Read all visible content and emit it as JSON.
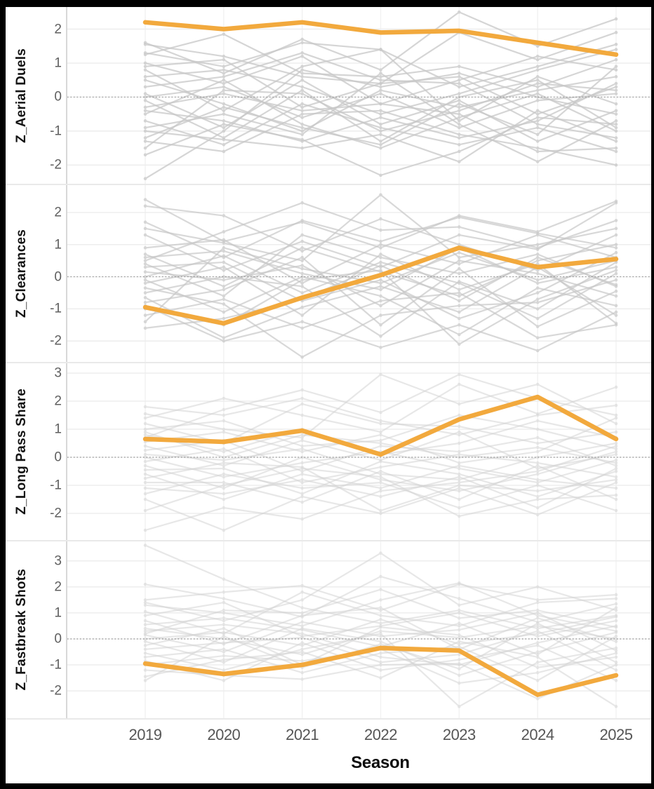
{
  "chart_data": {
    "type": "line",
    "xlabel": "Season",
    "x": [
      2019,
      2020,
      2021,
      2022,
      2023,
      2024,
      2025
    ],
    "highlight_color": "#F2A93D",
    "grid_color": "#ededed",
    "grid_color_v": "#f2f2f2",
    "zero_line_color": "#8f8f8f",
    "panel_divider_color": "#e9e9e9",
    "frame_color": "#000000",
    "legend": "none",
    "grid": "on",
    "panels": [
      {
        "ylabel": "Z_Aerial Duels",
        "yticks": [
          2,
          1,
          0,
          -1,
          -2
        ],
        "ylim": [
          -2.55,
          2.65
        ],
        "series_color": "#c8c8c8",
        "series_opacity": 0.75,
        "highlight": [
          2.2,
          2.0,
          2.2,
          1.9,
          1.95,
          1.6,
          1.25
        ],
        "background_series": [
          [
            1.6,
            0.7,
            1.7,
            0.8,
            2.5,
            1.5,
            2.3
          ],
          [
            1.55,
            1.2,
            0.6,
            0.4,
            1.9,
            1.1,
            1.9
          ],
          [
            1.3,
            0.9,
            1.6,
            1.4,
            0.3,
            0.9,
            1.55
          ],
          [
            1.25,
            1.85,
            0.7,
            0.6,
            0.9,
            0.3,
            1.1
          ],
          [
            1.0,
            0.4,
            1.2,
            -0.2,
            0.5,
            1.2,
            0.8
          ],
          [
            0.9,
            1.1,
            -0.3,
            0.4,
            0.6,
            -0.5,
            0.3
          ],
          [
            0.8,
            -0.4,
            0.9,
            1.4,
            -0.7,
            0.6,
            -0.2
          ],
          [
            0.6,
            0.8,
            0.3,
            -0.5,
            0.1,
            0.8,
            1.4
          ],
          [
            0.5,
            -0.2,
            -1.0,
            0.2,
            -0.3,
            0.2,
            0.6
          ],
          [
            0.3,
            0.6,
            1.3,
            0.5,
            0.4,
            -0.8,
            -1.2
          ],
          [
            0.1,
            -0.9,
            0.5,
            -0.8,
            -0.1,
            -1.3,
            -0.4
          ],
          [
            0.0,
            0.3,
            -0.6,
            0.1,
            -0.9,
            -0.1,
            0.1
          ],
          [
            -0.1,
            -1.2,
            0.2,
            -1.3,
            0.0,
            0.5,
            -0.9
          ],
          [
            -0.3,
            0.1,
            -0.4,
            -0.2,
            -0.5,
            -1.6,
            -1.5
          ],
          [
            -0.4,
            -0.7,
            -1.3,
            -0.6,
            -1.2,
            -0.7,
            0.4
          ],
          [
            -0.5,
            0.5,
            -0.8,
            -1.5,
            -0.6,
            0.1,
            -1.0
          ],
          [
            -0.7,
            -1.4,
            -0.2,
            -0.9,
            -1.4,
            -0.9,
            -1.6
          ],
          [
            -0.9,
            -0.5,
            -1.1,
            0.7,
            -0.8,
            -1.9,
            -0.7
          ],
          [
            -1.0,
            -1.25,
            -1.5,
            -1.1,
            -1.9,
            -0.4,
            -1.3
          ],
          [
            -1.2,
            -0.3,
            -0.9,
            -1.4,
            -0.2,
            -1.1,
            0.9
          ],
          [
            -1.3,
            -1.6,
            -0.5,
            -0.4,
            -1.1,
            -1.5,
            -2.0
          ],
          [
            -1.5,
            0.2,
            0.1,
            -1.0,
            -0.4,
            0.4,
            0.2
          ],
          [
            -1.7,
            -0.8,
            -1.25,
            -2.3,
            -1.6,
            -0.6,
            -0.8
          ],
          [
            -2.4,
            -1.0,
            0.8,
            0.3,
            0.7,
            0.0,
            -0.5
          ]
        ]
      },
      {
        "ylabel": "Z_Clearances",
        "yticks": [
          2,
          1,
          0,
          -1,
          -2
        ],
        "ylim": [
          -2.65,
          2.85
        ],
        "series_color": "#c8c8c8",
        "series_opacity": 0.7,
        "highlight": [
          -0.95,
          -1.45,
          -0.65,
          0.05,
          0.9,
          0.3,
          0.55
        ],
        "background_series": [
          [
            2.4,
            1.1,
            1.7,
            0.9,
            1.9,
            1.4,
            2.35
          ],
          [
            2.2,
            1.9,
            0.8,
            1.8,
            1.0,
            0.2,
            1.3
          ],
          [
            1.7,
            0.6,
            1.75,
            1.1,
            1.85,
            1.35,
            0.9
          ],
          [
            1.5,
            1.05,
            0.5,
            2.55,
            0.6,
            1.0,
            1.5
          ],
          [
            1.3,
            0.2,
            1.1,
            0.3,
            1.3,
            0.85,
            2.3
          ],
          [
            0.9,
            1.15,
            -0.2,
            1.0,
            0.4,
            1.3,
            0.6
          ],
          [
            0.7,
            -0.3,
            0.9,
            0.15,
            -0.6,
            0.5,
            1.0
          ],
          [
            0.6,
            0.8,
            0.1,
            -0.4,
            0.9,
            -0.2,
            0.3
          ],
          [
            0.4,
            -0.6,
            1.3,
            0.6,
            0.1,
            0.7,
            -0.3
          ],
          [
            0.3,
            0.45,
            -0.75,
            -0.1,
            -1.3,
            -0.5,
            0.75
          ],
          [
            0.15,
            -0.1,
            0.35,
            -0.9,
            0.5,
            0.1,
            -0.6
          ],
          [
            0.0,
            0.65,
            -0.5,
            0.45,
            -0.2,
            -1.3,
            0.1
          ],
          [
            -0.1,
            -1.1,
            0.0,
            -0.6,
            -1.8,
            -0.35,
            -0.9
          ],
          [
            -0.2,
            0.3,
            -1.2,
            0.7,
            -0.4,
            0.4,
            -1.45
          ],
          [
            -0.35,
            -0.85,
            -2.5,
            -1.2,
            -0.9,
            -0.8,
            -0.1
          ],
          [
            -0.5,
            0.0,
            -0.3,
            -1.85,
            -0.15,
            -1.0,
            0.45
          ],
          [
            -0.65,
            -1.9,
            -0.95,
            -0.3,
            -1.1,
            0.3,
            -1.2
          ],
          [
            -0.8,
            -0.4,
            0.6,
            -1.5,
            0.25,
            -1.55,
            -0.45
          ],
          [
            -1.0,
            -1.5,
            -0.1,
            0.2,
            -2.1,
            -0.7,
            0.2
          ],
          [
            -1.2,
            -0.7,
            -1.6,
            -0.75,
            -0.5,
            -1.9,
            -1.5
          ],
          [
            -1.4,
            0.9,
            0.25,
            -0.2,
            0.75,
            -0.1,
            0.5
          ],
          [
            -1.6,
            -1.3,
            -0.7,
            0.35,
            -0.75,
            0.6,
            -0.25
          ],
          [
            0.5,
            1.4,
            2.3,
            1.45,
            1.55,
            0.9,
            1.75
          ],
          [
            -0.9,
            -2.0,
            -1.4,
            -2.2,
            -1.5,
            -2.3,
            -1.1
          ]
        ]
      },
      {
        "ylabel": "Z_Long Pass Share",
        "yticks": [
          3,
          2,
          1,
          0,
          -1,
          -2
        ],
        "ylim": [
          -2.95,
          3.35
        ],
        "series_color": "#d4d4d4",
        "series_opacity": 0.55,
        "highlight": [
          0.65,
          0.55,
          0.95,
          0.1,
          1.35,
          2.15,
          0.65
        ],
        "background_series": [
          [
            1.8,
            1.5,
            2.1,
            1.3,
            0.8,
            1.5,
            1.85
          ],
          [
            1.55,
            1.0,
            0.7,
            2.95,
            1.9,
            2.6,
            1.2
          ],
          [
            1.4,
            2.1,
            1.5,
            0.9,
            2.6,
            1.55,
            2.5
          ],
          [
            1.2,
            0.5,
            1.9,
            1.2,
            1.1,
            0.5,
            0.9
          ],
          [
            1.0,
            1.3,
            0.4,
            0.6,
            1.5,
            1.0,
            0.3
          ],
          [
            0.8,
            0.2,
            1.0,
            0.1,
            0.5,
            1.3,
            0.7
          ],
          [
            0.55,
            0.9,
            0.2,
            0.8,
            -0.2,
            0.2,
            1.4
          ],
          [
            0.4,
            -0.3,
            0.6,
            -0.1,
            0.9,
            -0.4,
            0.1
          ],
          [
            0.25,
            0.6,
            -0.5,
            0.4,
            0.2,
            0.7,
            -0.3
          ],
          [
            0.1,
            -0.1,
            0.3,
            -0.6,
            -0.8,
            0.0,
            0.5
          ],
          [
            0.0,
            -0.7,
            -0.2,
            0.2,
            -0.4,
            -0.9,
            -0.1
          ],
          [
            -0.15,
            0.3,
            -0.9,
            -0.35,
            0.1,
            -0.2,
            -0.7
          ],
          [
            -0.3,
            -1.1,
            0.0,
            -0.8,
            -1.2,
            -0.6,
            0.2
          ],
          [
            -0.45,
            -0.4,
            -1.3,
            -0.15,
            -0.6,
            -1.4,
            -0.5
          ],
          [
            -0.6,
            -1.5,
            -0.6,
            -1.1,
            -0.3,
            -0.8,
            -1.1
          ],
          [
            -0.75,
            -0.2,
            -0.35,
            -1.9,
            -1.0,
            -1.2,
            -0.8
          ],
          [
            -0.9,
            -0.9,
            -1.6,
            -0.5,
            -1.5,
            -0.3,
            -1.5
          ],
          [
            -1.1,
            -1.3,
            -0.8,
            -1.4,
            -0.7,
            -1.8,
            -0.4
          ],
          [
            -1.3,
            -0.6,
            -1.1,
            -0.9,
            -1.8,
            -1.0,
            -1.9
          ],
          [
            -1.5,
            -2.6,
            -1.4,
            -2.0,
            -1.1,
            -2.05,
            -0.9
          ],
          [
            -1.9,
            -1.0,
            -0.4,
            -0.7,
            -2.1,
            -1.5,
            -1.35
          ],
          [
            -2.6,
            -1.8,
            -2.2,
            -1.2,
            -0.9,
            -0.5,
            0.4
          ],
          [
            0.7,
            1.7,
            2.4,
            1.6,
            2.95,
            2.1,
            1.5
          ],
          [
            0.9,
            0.0,
            0.8,
            0.5,
            0.0,
            0.35,
            -0.2
          ]
        ]
      },
      {
        "ylabel": "Z_Fastbreak Shots",
        "yticks": [
          3,
          2,
          1,
          0,
          -1,
          -2
        ],
        "ylim": [
          -3.05,
          3.75
        ],
        "series_color": "#d4d4d4",
        "series_opacity": 0.55,
        "highlight": [
          -0.95,
          -1.35,
          -1.0,
          -0.35,
          -0.45,
          -2.15,
          -1.4
        ],
        "background_series": [
          [
            3.6,
            2.3,
            1.2,
            0.6,
            1.1,
            0.4,
            0.9
          ],
          [
            1.5,
            1.8,
            2.05,
            1.1,
            2.1,
            1.5,
            1.7
          ],
          [
            1.4,
            0.7,
            1.5,
            3.3,
            1.3,
            2.0,
            1.1
          ],
          [
            1.3,
            1.0,
            0.5,
            1.5,
            2.15,
            0.9,
            0.3
          ],
          [
            1.05,
            0.2,
            1.8,
            0.9,
            0.5,
            1.4,
            1.55
          ],
          [
            0.9,
            1.4,
            0.1,
            0.5,
            1.0,
            0.1,
            0.7
          ],
          [
            0.7,
            -0.2,
            0.9,
            1.2,
            -0.4,
            0.8,
            -0.1
          ],
          [
            0.55,
            0.8,
            0.35,
            -0.3,
            0.6,
            -0.6,
            1.2
          ],
          [
            0.4,
            0.0,
            -0.6,
            0.3,
            0.05,
            0.5,
            0.0
          ],
          [
            0.3,
            0.55,
            0.2,
            -0.7,
            -1.0,
            -0.15,
            0.5
          ],
          [
            0.15,
            -0.5,
            0.65,
            0.1,
            0.35,
            1.0,
            -0.45
          ],
          [
            0.0,
            0.25,
            -0.25,
            0.75,
            -0.2,
            0.2,
            0.85
          ],
          [
            -0.1,
            -0.9,
            0.4,
            -0.1,
            -1.4,
            -0.5,
            0.25
          ],
          [
            -0.25,
            0.4,
            -1.0,
            0.45,
            0.15,
            -1.1,
            -0.7
          ],
          [
            -0.4,
            -0.15,
            0.05,
            -0.9,
            -0.6,
            0.3,
            -1.2
          ],
          [
            -0.55,
            -1.2,
            -0.4,
            0.2,
            -2.6,
            -0.9,
            -0.35
          ],
          [
            -0.7,
            -0.4,
            -1.3,
            -0.55,
            -0.3,
            -1.6,
            0.1
          ],
          [
            -0.85,
            -1.6,
            -0.15,
            -1.2,
            -0.8,
            -0.25,
            -1.6
          ],
          [
            -1.0,
            -0.65,
            -0.85,
            -0.4,
            -1.7,
            -1.3,
            -0.55
          ],
          [
            -1.2,
            -1.4,
            -1.55,
            -1.0,
            -0.95,
            -2.3,
            -1.0
          ],
          [
            -1.45,
            -0.8,
            -0.5,
            -1.5,
            -0.1,
            -0.7,
            -2.6
          ],
          [
            -1.6,
            0.1,
            -1.1,
            -0.2,
            -1.15,
            0.6,
            -0.9
          ],
          [
            0.2,
            1.1,
            1.0,
            1.9,
            0.8,
            1.1,
            0.45
          ],
          [
            2.1,
            1.55,
            0.85,
            2.4,
            1.55,
            0.65,
            1.35
          ]
        ]
      }
    ]
  }
}
